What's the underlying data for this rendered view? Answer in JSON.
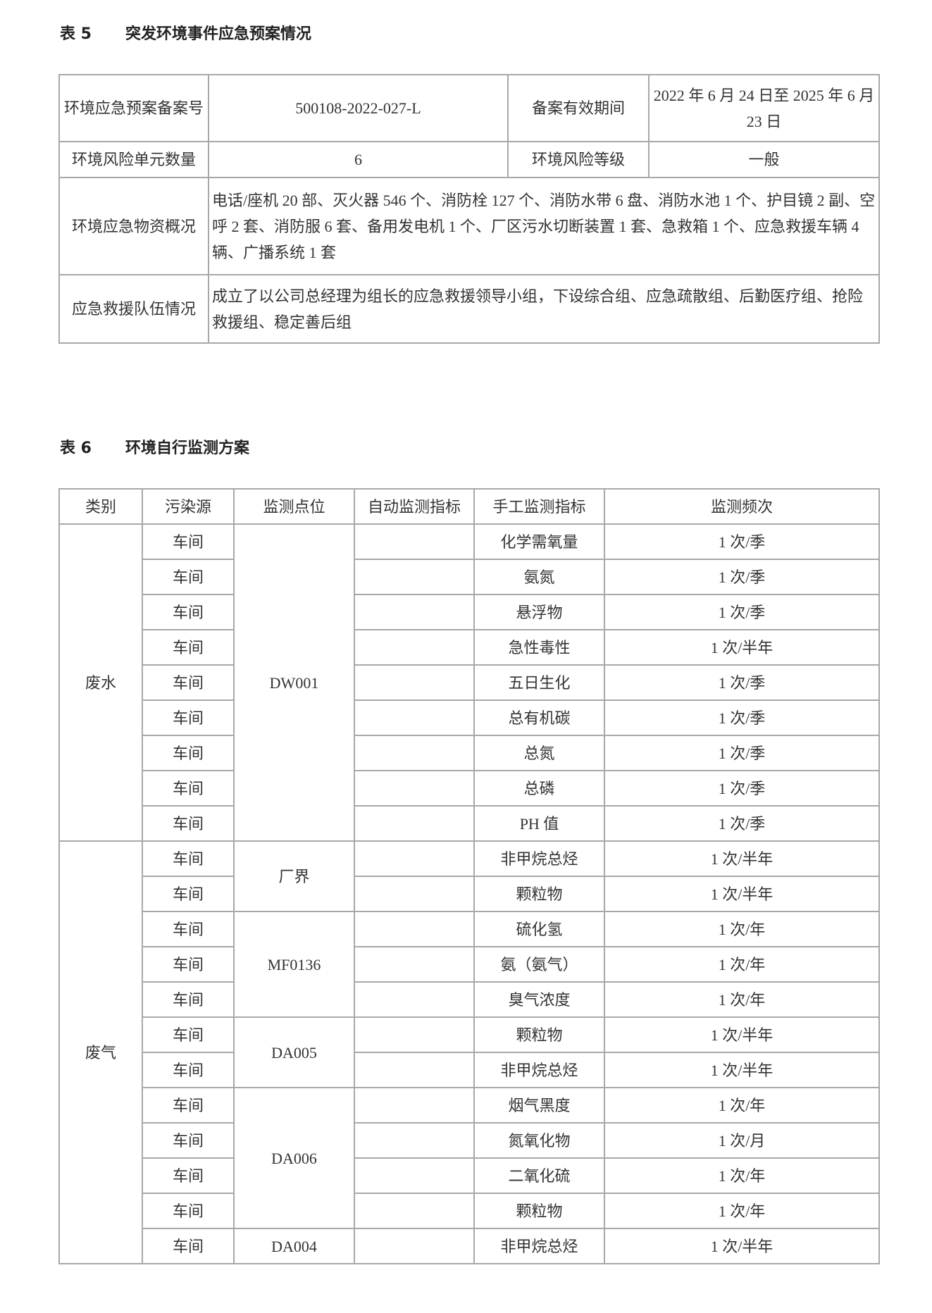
{
  "table5": {
    "number": "表 5",
    "title": "突发环境事件应急预案情况",
    "filing_no_label": "环境应急预案备案号",
    "filing_no": "500108-2022-027-L",
    "validity_label": "备案有效期间",
    "validity": "2022 年 6 月 24 日至 2025 年 6 月 23 日",
    "risk_units_label": "环境风险单元数量",
    "risk_units": "6",
    "risk_level_label": "环境风险等级",
    "risk_level": "一般",
    "materials_label": "环境应急物资概况",
    "materials": "电话/座机 20 部、灭火器 546 个、消防栓 127 个、消防水带 6 盘、消防水池 1 个、护目镜 2 副、空呼 2 套、消防服 6 套、备用发电机 1 个、厂区污水切断装置 1 套、急救箱 1 个、应急救援车辆 4 辆、广播系统 1 套",
    "team_label": "应急救援队伍情况",
    "team": "成立了以公司总经理为组长的应急救援领导小组，下设综合组、应急疏散组、后勤医疗组、抢险救援组、稳定善后组"
  },
  "table6": {
    "number": "表 6",
    "title": "环境自行监测方案",
    "headers": [
      "类别",
      "污染源",
      "监测点位",
      "自动监测指标",
      "手工监测指标",
      "监测频次"
    ],
    "groups": [
      {
        "category": "废水",
        "points": [
          {
            "point": "DW001",
            "rows": [
              {
                "source": "车间",
                "auto": "",
                "manual": "化学需氧量",
                "freq": "1 次/季"
              },
              {
                "source": "车间",
                "auto": "",
                "manual": "氨氮",
                "freq": "1 次/季"
              },
              {
                "source": "车间",
                "auto": "",
                "manual": "悬浮物",
                "freq": "1 次/季"
              },
              {
                "source": "车间",
                "auto": "",
                "manual": "急性毒性",
                "freq": "1 次/半年"
              },
              {
                "source": "车间",
                "auto": "",
                "manual": "五日生化",
                "freq": "1 次/季"
              },
              {
                "source": "车间",
                "auto": "",
                "manual": "总有机碳",
                "freq": "1 次/季"
              },
              {
                "source": "车间",
                "auto": "",
                "manual": "总氮",
                "freq": "1 次/季"
              },
              {
                "source": "车间",
                "auto": "",
                "manual": "总磷",
                "freq": "1 次/季"
              },
              {
                "source": "车间",
                "auto": "",
                "manual": "PH 值",
                "freq": "1 次/季"
              }
            ]
          }
        ]
      },
      {
        "category": "废气",
        "points": [
          {
            "point": "厂界",
            "rows": [
              {
                "source": "车间",
                "auto": "",
                "manual": "非甲烷总烃",
                "freq": "1 次/半年"
              },
              {
                "source": "车间",
                "auto": "",
                "manual": "颗粒物",
                "freq": "1 次/半年"
              }
            ]
          },
          {
            "point": "MF0136",
            "rows": [
              {
                "source": "车间",
                "auto": "",
                "manual": "硫化氢",
                "freq": "1 次/年"
              },
              {
                "source": "车间",
                "auto": "",
                "manual": "氨（氨气）",
                "freq": "1 次/年"
              },
              {
                "source": "车间",
                "auto": "",
                "manual": "臭气浓度",
                "freq": "1 次/年"
              }
            ]
          },
          {
            "point": "DA005",
            "rows": [
              {
                "source": "车间",
                "auto": "",
                "manual": "颗粒物",
                "freq": "1 次/半年"
              },
              {
                "source": "车间",
                "auto": "",
                "manual": "非甲烷总烃",
                "freq": "1 次/半年"
              }
            ]
          },
          {
            "point": "DA006",
            "rows": [
              {
                "source": "车间",
                "auto": "",
                "manual": "烟气黑度",
                "freq": "1 次/年"
              },
              {
                "source": "车间",
                "auto": "",
                "manual": "氮氧化物",
                "freq": "1 次/月"
              },
              {
                "source": "车间",
                "auto": "",
                "manual": "二氧化硫",
                "freq": "1 次/年"
              },
              {
                "source": "车间",
                "auto": "",
                "manual": "颗粒物",
                "freq": "1 次/年"
              }
            ]
          },
          {
            "point": "DA004",
            "rows": [
              {
                "source": "车间",
                "auto": "",
                "manual": "非甲烷总烃",
                "freq": "1 次/半年"
              }
            ]
          }
        ]
      }
    ]
  }
}
